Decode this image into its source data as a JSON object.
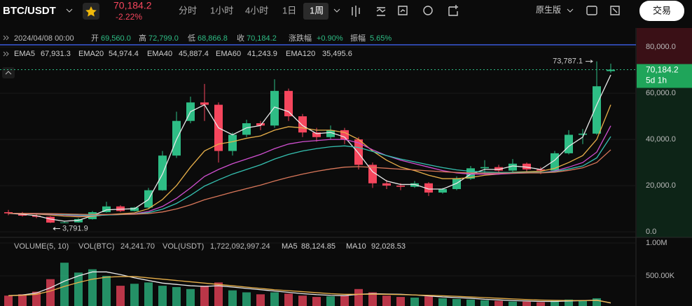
{
  "header": {
    "symbol": "BTC/USDT",
    "price": "70,184.2",
    "change": "-2.22%",
    "tabs": [
      "分时",
      "1小时",
      "4小时",
      "1日",
      "1周"
    ],
    "active_tab": 4,
    "version": "原生版",
    "trade_button": "交易"
  },
  "info_bar": {
    "time": "2024/04/08 00:00",
    "open_label": "开",
    "open": "69,560.0",
    "high_label": "高",
    "high": "72,799.0",
    "low_label": "低",
    "low": "68,866.8",
    "close_label": "收",
    "close": "70,184.2",
    "change_label": "涨跌幅",
    "change": "+0.90%",
    "amplitude_label": "振幅",
    "amplitude": "5.65%"
  },
  "chart_data": [
    {
      "type": "candlestick",
      "up_color": "#2ebd85",
      "down_color": "#f6465d",
      "open": [
        8500,
        8000,
        7000,
        6500,
        4000,
        4100,
        5500,
        8500,
        11000,
        9000,
        10500,
        18000,
        33000,
        48000,
        56000,
        55000,
        35000,
        42000,
        47000,
        46000,
        61000,
        50000,
        43000,
        41000,
        44000,
        40000,
        29000,
        21000,
        20000,
        19500,
        21000,
        17000,
        18500,
        23000,
        27500,
        28000,
        26500,
        29500,
        27000,
        26500,
        34000,
        42000,
        42500,
        69560
      ],
      "high": [
        9500,
        8600,
        7600,
        6800,
        4600,
        5900,
        9000,
        13000,
        11500,
        10800,
        19000,
        35000,
        52000,
        58500,
        64000,
        56000,
        43000,
        48500,
        48000,
        66000,
        62000,
        51000,
        45000,
        46000,
        45000,
        41000,
        30000,
        22500,
        21000,
        22000,
        21500,
        19000,
        24000,
        28500,
        31000,
        29000,
        31500,
        30000,
        28000,
        35000,
        44000,
        44500,
        73787.1,
        72799
      ],
      "low": [
        7200,
        6600,
        5900,
        3791.9,
        3900,
        4000,
        5300,
        8300,
        8600,
        8800,
        10200,
        17800,
        32000,
        47000,
        48000,
        30000,
        33000,
        41000,
        44000,
        45000,
        48000,
        41000,
        39000,
        40000,
        38000,
        27000,
        19000,
        18500,
        18000,
        19000,
        15500,
        16500,
        18000,
        22500,
        25500,
        25000,
        26000,
        26000,
        25000,
        26000,
        33500,
        38000,
        42000,
        68866.8
      ],
      "close": [
        8000,
        7000,
        6500,
        4000,
        4100,
        5500,
        8500,
        11000,
        9000,
        10500,
        18000,
        33000,
        48000,
        56000,
        55000,
        35000,
        42000,
        47000,
        46000,
        61000,
        50000,
        43000,
        41000,
        44000,
        40000,
        29000,
        21000,
        20000,
        19500,
        21000,
        17000,
        18500,
        23000,
        27500,
        28000,
        26500,
        29500,
        27000,
        26500,
        34000,
        42000,
        42500,
        63000,
        70184.2
      ],
      "max_label": "73,787.1",
      "min_label": "3,791.9",
      "last_label": "70,184.2",
      "countdown": "5d 1h",
      "ylim": [
        -2100,
        86700
      ],
      "yticks": [
        {
          "value": 0,
          "label": "0.0"
        },
        {
          "value": 20000,
          "label": "20,000.0"
        },
        {
          "value": 40000,
          "label": "40,000.0"
        },
        {
          "value": 60000,
          "label": "60,000.0"
        },
        {
          "value": 80000,
          "label": "80,000.0"
        }
      ],
      "series": [
        {
          "name": "EMA5",
          "legend_value": "67,931.3",
          "color": "#e8e8e8",
          "values": [
            8000,
            7600,
            7000,
            5500,
            4600,
            5000,
            7000,
            9500,
            9800,
            10000,
            14000,
            25000,
            40000,
            52000,
            55000,
            45000,
            42000,
            45000,
            46000,
            54000,
            52000,
            46000,
            42500,
            43000,
            41000,
            34000,
            26000,
            22000,
            20500,
            20500,
            18500,
            18500,
            21000,
            25000,
            27000,
            27000,
            28500,
            28000,
            27000,
            31000,
            37000,
            41000,
            55000,
            67931.3
          ]
        },
        {
          "name": "EMA20",
          "legend_value": "54,974.4",
          "color": "#e8b04a",
          "values": [
            8000,
            7900,
            7700,
            7300,
            6800,
            6500,
            6700,
            7400,
            7800,
            8200,
            10000,
            14000,
            20000,
            28000,
            35000,
            38000,
            39000,
            40500,
            41500,
            44000,
            45500,
            45000,
            44000,
            44000,
            43000,
            40000,
            35000,
            31000,
            28000,
            26500,
            24500,
            23000,
            23000,
            23500,
            24500,
            25000,
            25800,
            26000,
            26200,
            27500,
            30000,
            33000,
            40000,
            54974.4
          ]
        },
        {
          "name": "EMA40",
          "legend_value": "45,887.4",
          "color": "#d04fd0",
          "values": [
            8000,
            7950,
            7850,
            7600,
            7300,
            7000,
            7000,
            7300,
            7500,
            7800,
            8800,
            11000,
            14500,
            19000,
            24000,
            27000,
            29500,
            31500,
            33500,
            36000,
            38000,
            39000,
            39500,
            40000,
            40000,
            38500,
            35500,
            33000,
            31000,
            29500,
            28000,
            26500,
            25500,
            25000,
            25000,
            25000,
            25300,
            25500,
            25600,
            26300,
            28000,
            30000,
            34500,
            45887.4
          ]
        },
        {
          "name": "EMA60",
          "legend_value": "41,243.9",
          "color": "#35c0b0",
          "values": [
            8000,
            7970,
            7900,
            7750,
            7500,
            7250,
            7150,
            7300,
            7450,
            7650,
            8300,
            9800,
            12300,
            15800,
            19800,
            22500,
            25000,
            27000,
            29000,
            31500,
            33500,
            35000,
            36000,
            36800,
            37200,
            36500,
            34800,
            33000,
            31500,
            30300,
            29000,
            27800,
            26800,
            26200,
            25900,
            25700,
            25700,
            25700,
            25700,
            26000,
            27200,
            28500,
            32000,
            41243.9
          ]
        },
        {
          "name": "EMA120",
          "legend_value": "35,495.6",
          "color": "#d9775a",
          "values": [
            8000,
            7990,
            7960,
            7880,
            7750,
            7600,
            7500,
            7500,
            7550,
            7620,
            7900,
            8600,
            9900,
            11700,
            13900,
            15500,
            17200,
            18700,
            20200,
            22000,
            23600,
            25000,
            26200,
            27200,
            28000,
            28200,
            27900,
            27500,
            27100,
            26800,
            26400,
            26000,
            25700,
            25500,
            25400,
            25400,
            25400,
            25500,
            25500,
            25800,
            26600,
            27700,
            30000,
            35495.6
          ]
        }
      ]
    },
    {
      "type": "bar",
      "title": "VOLUME(5, 10)",
      "vol_btc_label": "VOL(BTC)",
      "vol_btc": "24,241.70",
      "vol_usdt_label": "VOL(USDT)",
      "vol_usdt": "1,722,092,997.24",
      "values": [
        200000,
        220000,
        260000,
        450000,
        700000,
        550000,
        600000,
        500000,
        350000,
        380000,
        400000,
        350000,
        330000,
        300000,
        350000,
        400000,
        280000,
        250000,
        220000,
        250000,
        230000,
        200000,
        180000,
        190000,
        200000,
        300000,
        250000,
        200000,
        180000,
        170000,
        190000,
        160000,
        150000,
        140000,
        130000,
        120000,
        110000,
        110000,
        100000,
        120000,
        140000,
        130000,
        160000,
        24241.7
      ],
      "ylim": [
        42500,
        1074000
      ],
      "yticks": [
        {
          "value": 500000,
          "label": "500.00K"
        },
        {
          "value": 1000000,
          "label": "1.00M"
        }
      ],
      "series": [
        {
          "name": "MA5",
          "legend_value": "88,124.85",
          "color": "#e8e8e8",
          "values": [
            200000,
            210000,
            240000,
            320000,
            420000,
            500000,
            560000,
            560000,
            520000,
            470000,
            430000,
            390000,
            370000,
            350000,
            340000,
            350000,
            330000,
            310000,
            290000,
            270000,
            250000,
            230000,
            215000,
            205000,
            200000,
            220000,
            230000,
            225000,
            220000,
            210000,
            195000,
            180000,
            170000,
            160000,
            145000,
            135000,
            125000,
            118000,
            112000,
            112000,
            118000,
            124000,
            132000,
            88124.85
          ]
        },
        {
          "name": "MA10",
          "legend_value": "92,028.53",
          "color": "#e8b04a",
          "values": [
            200000,
            205000,
            220000,
            270000,
            340000,
            400000,
            450000,
            480000,
            490000,
            490000,
            470000,
            450000,
            430000,
            410000,
            390000,
            370000,
            350000,
            330000,
            310000,
            290000,
            275000,
            260000,
            245000,
            230000,
            220000,
            220000,
            222000,
            220000,
            215000,
            210000,
            205000,
            198000,
            190000,
            180000,
            170000,
            160000,
            150000,
            140000,
            132000,
            128000,
            126000,
            125000,
            128000,
            92028.53
          ]
        }
      ]
    }
  ]
}
